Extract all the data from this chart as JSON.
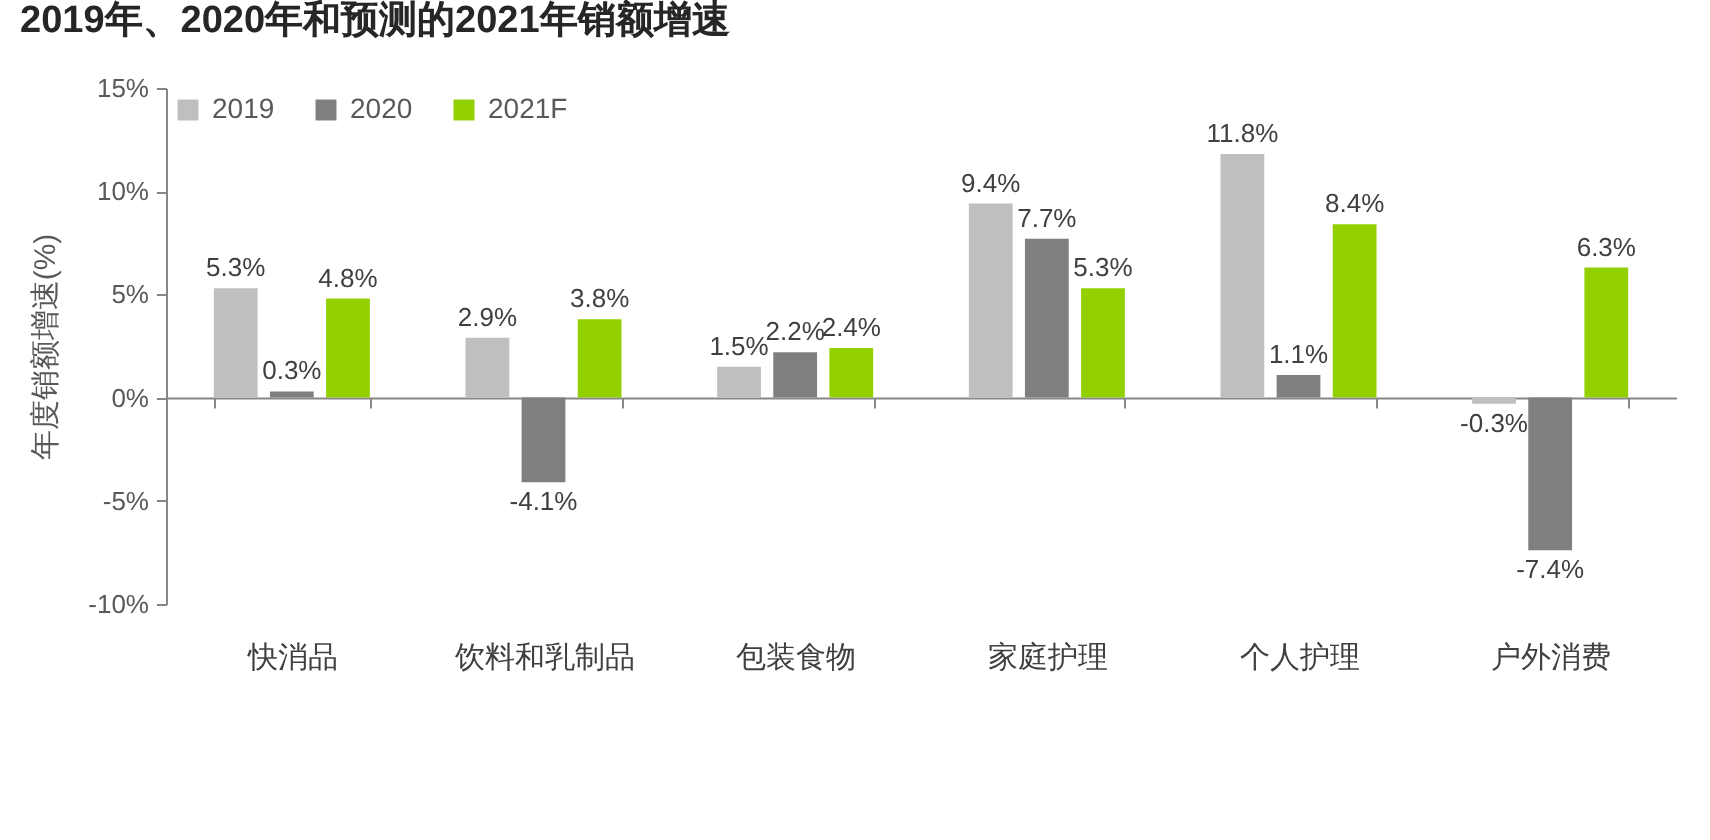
{
  "chart_data": {
    "type": "bar",
    "title": "2019年、2020年和预测的2021年销额增速",
    "ylabel": "年度销额增速(%)",
    "categories": [
      "快消品",
      "饮料和乳制品",
      "包装食物",
      "家庭护理",
      "个人护理",
      "户外消费"
    ],
    "series": [
      {
        "name": "2019",
        "color": "#bfbfbf",
        "values": [
          5.3,
          2.9,
          1.5,
          9.4,
          11.8,
          -0.3
        ],
        "value_labels": [
          "5.3%",
          "2.9%",
          "1.5%",
          "9.4%",
          "11.8%",
          "-0.3%"
        ]
      },
      {
        "name": "2020",
        "color": "#7f7f7f",
        "values": [
          0.3,
          -4.1,
          2.2,
          7.7,
          1.1,
          -7.4
        ],
        "value_labels": [
          "0.3%",
          "-4.1%",
          "2.2%",
          "7.7%",
          "1.1%",
          "-7.4%"
        ]
      },
      {
        "name": "2021F",
        "color": "#92d000",
        "values": [
          4.8,
          3.8,
          2.4,
          5.3,
          8.4,
          6.3
        ],
        "value_labels": [
          "4.8%",
          "3.8%",
          "2.4%",
          "5.3%",
          "8.4%",
          "6.3%"
        ]
      }
    ],
    "ylim": [
      -10,
      15
    ],
    "yticks": [
      {
        "value": -10,
        "label": "-10%"
      },
      {
        "value": -5,
        "label": "-5%"
      },
      {
        "value": 0,
        "label": "0%"
      },
      {
        "value": 5,
        "label": "5%"
      },
      {
        "value": 10,
        "label": "10%"
      },
      {
        "value": 15,
        "label": "15%"
      }
    ],
    "legend": "top left"
  }
}
